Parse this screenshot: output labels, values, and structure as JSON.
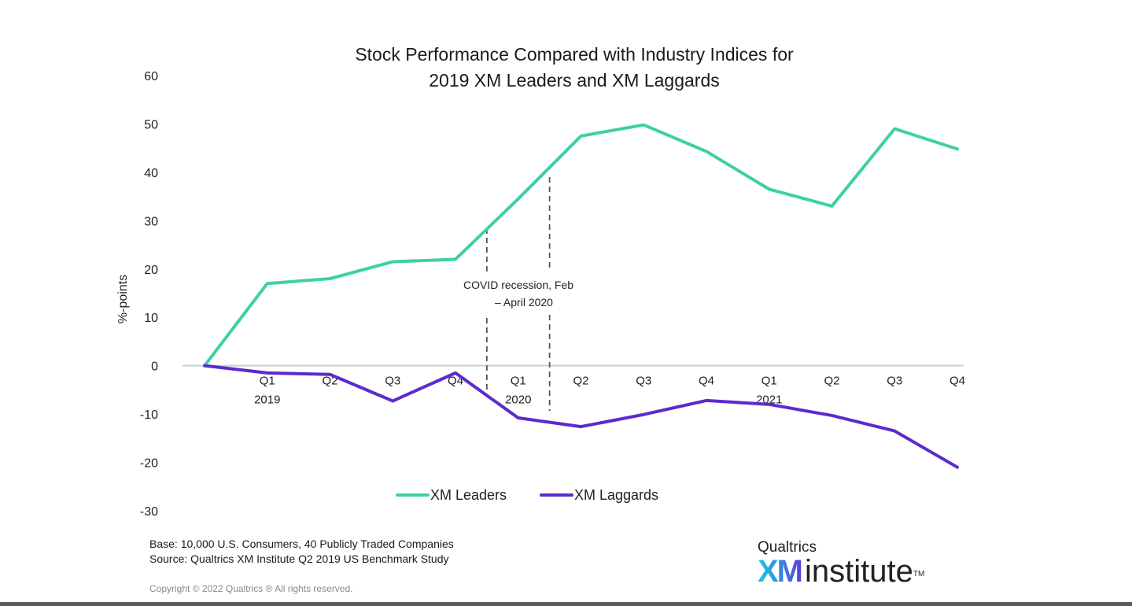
{
  "chart_data": {
    "type": "line",
    "title": [
      "Stock Performance Compared with Industry Indices for",
      "2019 XM Leaders and XM Laggards"
    ],
    "xlabel": "",
    "ylabel": "%-points",
    "ylim": [
      -30,
      60
    ],
    "yticks": [
      60,
      50,
      40,
      30,
      20,
      10,
      0,
      -10,
      -20,
      -30
    ],
    "grid": false,
    "x_categories": [
      {
        "q": "",
        "year": ""
      },
      {
        "q": "Q1",
        "year": "2019"
      },
      {
        "q": "Q2",
        "year": ""
      },
      {
        "q": "Q3",
        "year": ""
      },
      {
        "q": "Q4",
        "year": ""
      },
      {
        "q": "Q1",
        "year": "2020"
      },
      {
        "q": "Q2",
        "year": ""
      },
      {
        "q": "Q3",
        "year": ""
      },
      {
        "q": "Q4",
        "year": ""
      },
      {
        "q": "Q1",
        "year": "2021"
      },
      {
        "q": "Q2",
        "year": ""
      },
      {
        "q": "Q3",
        "year": ""
      },
      {
        "q": "Q4",
        "year": ""
      }
    ],
    "series": [
      {
        "name": "XM Leaders",
        "color": "#3ecfa8",
        "values": [
          0,
          17,
          18,
          21.5,
          22,
          34.5,
          47.5,
          49.8,
          44.3,
          36.5,
          33,
          49,
          44.8
        ]
      },
      {
        "name": "XM Laggards",
        "color": "#5b2bcf",
        "values": [
          0,
          -1.5,
          -1.8,
          -7.3,
          -1.5,
          -10.8,
          -12.6,
          -10.1,
          -7.2,
          -8,
          -10.3,
          -13.5,
          -21
        ]
      }
    ],
    "annotations": [
      {
        "text": [
          "COVID recession, Feb",
          "– April 2020"
        ],
        "x_range": [
          4.5,
          5.5
        ],
        "style": "dashed-vertical-lines"
      }
    ],
    "legend": {
      "placement": "bottom-center",
      "entries": [
        "XM Leaders",
        "XM Laggards"
      ]
    }
  },
  "notes": {
    "base": "Base: 10,000 U.S. Consumers, 40 Publicly Traded Companies",
    "source": "Source: Qualtrics XM Institute Q2 2019 US Benchmark Study",
    "copyright": "Copyright © 2022 Qualtrics ® All rights reserved."
  },
  "logo": {
    "top": "Qualtrics",
    "xm": "XM",
    "institute": "institute",
    "tm": "TM"
  }
}
